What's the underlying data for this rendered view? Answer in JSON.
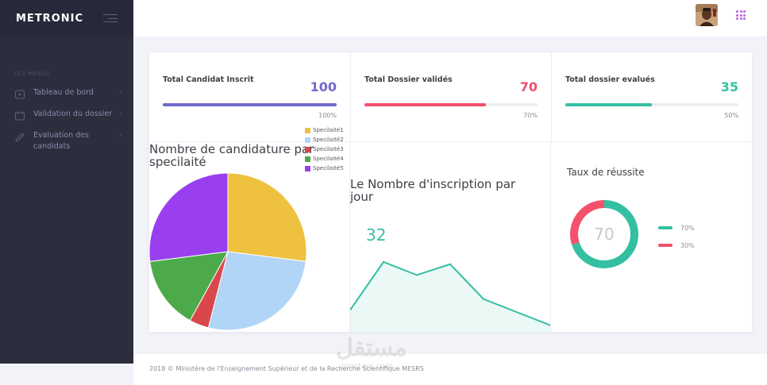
{
  "brand": "METRONIC",
  "sidebar": {
    "section_label": "LES MENUS",
    "items": [
      {
        "label": "Tableau de bord",
        "icon": "dashboard-icon"
      },
      {
        "label": "Validation du dossier",
        "icon": "folder-icon"
      },
      {
        "label": "Evaluation des candidats",
        "icon": "pencil-icon"
      }
    ]
  },
  "header": {
    "avatar": "user-avatar",
    "apps_icon": "apps-grid-icon"
  },
  "stats": [
    {
      "title": "Total Candidat Inscrit",
      "value": "100",
      "percent": "100%",
      "fill": 1.0,
      "color": "#716aca"
    },
    {
      "title": "Total Dossier validés",
      "value": "70",
      "percent": "70%",
      "fill": 0.7,
      "color": "#f4516c"
    },
    {
      "title": "Total dossier evalués",
      "value": "35",
      "percent": "50%",
      "fill": 0.5,
      "color": "#34bfa3"
    }
  ],
  "pie_chart": {
    "title_line1": "Nombre de candidature par",
    "title_line2": "specilaité"
  },
  "line_chart": {
    "title_line1": "Le Nombre d'inscription par",
    "title_line2": "jour",
    "value": "32"
  },
  "donut_chart": {
    "title": "Taux de réussite",
    "center": "70",
    "legend": [
      {
        "label": "70%",
        "color": "#34bfa3"
      },
      {
        "label": "30%",
        "color": "#f4516c"
      }
    ]
  },
  "chart_data": [
    {
      "type": "pie",
      "title": "Nombre de candidature par specilaité",
      "categories": [
        "Specilaité1",
        "Specilaité2",
        "Specilaité3",
        "Specilaité4",
        "Specilaité5"
      ],
      "values": [
        27,
        27,
        4,
        15,
        27
      ],
      "colors": [
        "#eec23f",
        "#b0d5f6",
        "#d9474b",
        "#4daa4a",
        "#9a3ff0"
      ],
      "legend": "right"
    },
    {
      "type": "area",
      "title": "Le Nombre d'inscription par jour",
      "x": [
        0,
        1,
        2,
        3,
        4,
        5,
        6
      ],
      "values": [
        10,
        32,
        26,
        31,
        15,
        9,
        3
      ],
      "ylim": [
        0,
        40
      ],
      "color": "#34bfa3"
    },
    {
      "type": "pie",
      "title": "Taux de réussite",
      "categories": [
        "70%",
        "30%"
      ],
      "values": [
        70,
        30
      ],
      "colors": [
        "#34bfa3",
        "#f4516c"
      ]
    }
  ],
  "footer": {
    "text": "2018 © Ministère de l'Enseignement Supérieur et de la Recherche Scientifique MESRS"
  },
  "watermark": {
    "main": "مستقل",
    "sub": "mostaql.com"
  }
}
